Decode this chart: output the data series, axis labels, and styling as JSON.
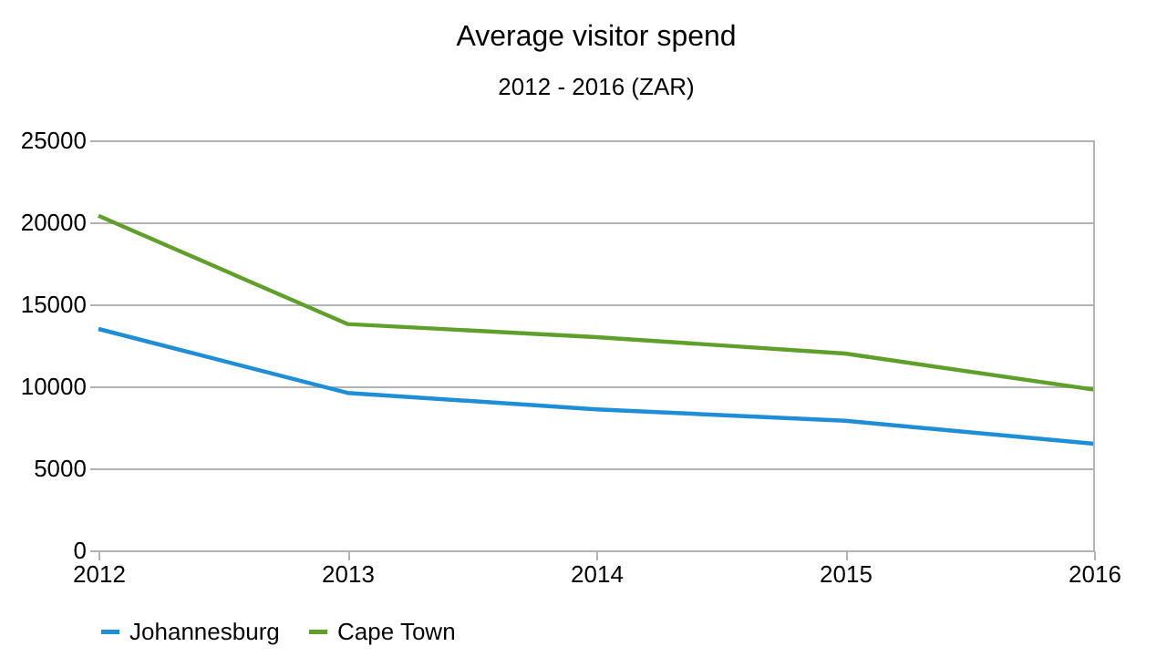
{
  "chart_data": {
    "type": "line",
    "title": "Average visitor spend",
    "subtitle": "2012 - 2016 (ZAR)",
    "x": [
      2012,
      2013,
      2014,
      2015,
      2016
    ],
    "xlim": [
      2012,
      2016
    ],
    "xticks": [
      2012,
      2013,
      2014,
      2015,
      2016
    ],
    "ylim": [
      0,
      25000
    ],
    "yticks": [
      0,
      5000,
      10000,
      15000,
      20000,
      25000
    ],
    "grid": "y",
    "legend": "bottom",
    "marker": "none",
    "line_style": "solid",
    "series": [
      {
        "name": "Johannesburg",
        "color": "#1f8ed8",
        "values": [
          13500,
          9600,
          8600,
          7900,
          6500
        ]
      },
      {
        "name": "Cape Town",
        "color": "#5ea02a",
        "values": [
          20400,
          13800,
          13000,
          12000,
          9800
        ]
      }
    ]
  }
}
